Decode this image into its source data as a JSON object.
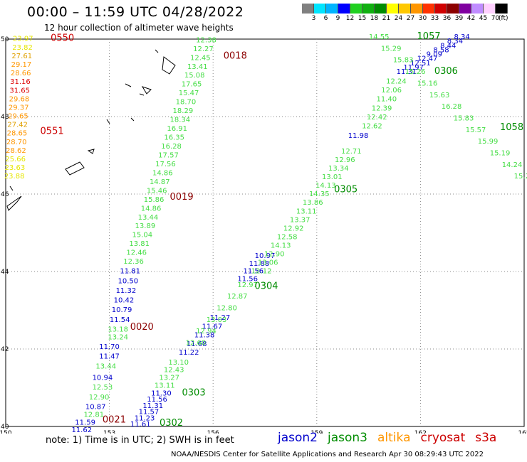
{
  "header": {
    "title": "00:00 – 11:59 UTC 04/28/2022",
    "subtitle": "12 hour collection of altimeter wave heights"
  },
  "colorbar": {
    "unit": "(ft)",
    "labels": [
      "3",
      "6",
      "9",
      "12",
      "15",
      "18",
      "21",
      "24",
      "27",
      "30",
      "33",
      "36",
      "39",
      "42",
      "45",
      "70"
    ],
    "colors": [
      "#808080",
      "#00e5ff",
      "#00b4ff",
      "#0000ff",
      "#20d020",
      "#10b010",
      "#008c00",
      "#ffff00",
      "#ffc800",
      "#ff9600",
      "#ff3200",
      "#d00000",
      "#8c0000",
      "#8000a0",
      "#c08cff",
      "#ffd0ff",
      "#000000"
    ]
  },
  "axes": {
    "x_ticks": [
      "150",
      "153",
      "156",
      "159",
      "162",
      "165"
    ],
    "y_ticks": [
      "50",
      "48",
      "46",
      "44",
      "42",
      "40"
    ]
  },
  "satellites": [
    {
      "name": "jason2",
      "color": "#0000cc"
    },
    {
      "name": "jason3",
      "color": "#008c00"
    },
    {
      "name": "altika",
      "color": "#ff9600"
    },
    {
      "name": "cryosat",
      "color": "#cc0000"
    },
    {
      "name": "s3a",
      "color": "#cc0000"
    }
  ],
  "note": "note:  1) Time is in UTC;  2) SWH is in feet",
  "footer": "NOAA/NESDIS Center for Satellite Applications and Research    Apr 30 08:29:43 UTC 2022",
  "pass_labels": [
    {
      "text": "0550",
      "color": "#cc0000",
      "lon": 151.3,
      "lat": 49.95
    },
    {
      "text": "0551",
      "color": "#cc0000",
      "lon": 151.0,
      "lat": 47.55
    },
    {
      "text": "0018",
      "color": "#8c0000",
      "lon": 156.3,
      "lat": 49.5
    },
    {
      "text": "0019",
      "color": "#8c0000",
      "lon": 154.75,
      "lat": 45.85
    },
    {
      "text": "0020",
      "color": "#8c0000",
      "lon": 153.6,
      "lat": 42.5
    },
    {
      "text": "0021",
      "color": "#8c0000",
      "lon": 152.8,
      "lat": 40.1
    },
    {
      "text": "0302",
      "color": "#008c00",
      "lon": 154.45,
      "lat": 40.02
    },
    {
      "text": "0303",
      "color": "#008c00",
      "lon": 155.1,
      "lat": 40.8
    },
    {
      "text": "0304",
      "color": "#008c00",
      "lon": 157.2,
      "lat": 43.55
    },
    {
      "text": "0305",
      "color": "#008c00",
      "lon": 159.5,
      "lat": 46.05
    },
    {
      "text": "0306",
      "color": "#008c00",
      "lon": 162.4,
      "lat": 49.1
    },
    {
      "text": "1057",
      "color": "#008c00",
      "lon": 161.9,
      "lat": 50.0
    },
    {
      "text": "1058",
      "color": "#008c00",
      "lon": 164.3,
      "lat": 47.65
    }
  ],
  "tracks": [
    {
      "sat": "altika",
      "values": [
        "23.97",
        "23.82",
        "27.61",
        "29.17",
        "28.66",
        "31.16",
        "31.65",
        "29.68",
        "29.37",
        "29.65",
        "27.42",
        "28.65",
        "28.70",
        "28.62",
        "25.66",
        "23.63",
        "23.88"
      ],
      "start": [
        150.5,
        49.95
      ],
      "end": [
        150.25,
        46.4
      ]
    },
    {
      "sat": "jason3",
      "values": [
        "12.38",
        "12.27",
        "12.45",
        "13.41",
        "15.08",
        "17.65",
        "15.47",
        "18.70",
        "18.29",
        "18.34",
        "16.91",
        "16.35",
        "16.28",
        "17.57",
        "17.56",
        "14.86",
        "14.87",
        "15.46",
        "15.86",
        "14.86",
        "13.44",
        "13.89",
        "15.04",
        "13.81",
        "12.46",
        "12.36"
      ],
      "start": [
        155.8,
        49.92
      ],
      "end": [
        153.7,
        44.2
      ]
    },
    {
      "sat": "jason2",
      "values": [
        "11.81",
        "10.50",
        "11.32",
        "10.42",
        "10.79",
        "11.54"
      ],
      "start": [
        153.6,
        43.95
      ],
      "end": [
        153.3,
        42.7
      ]
    },
    {
      "sat": "jason3",
      "values": [
        "13.18",
        "13.24"
      ],
      "start": [
        153.25,
        42.45
      ],
      "end": [
        153.25,
        42.25
      ]
    },
    {
      "sat": "jason2",
      "values": [
        "11.70",
        "11.47"
      ],
      "start": [
        153.0,
        42.0
      ],
      "end": [
        153.0,
        41.75
      ]
    },
    {
      "sat": "jason3",
      "values": [
        "13.44"
      ],
      "start": [
        152.9,
        41.5
      ],
      "end": [
        152.9,
        41.5
      ]
    },
    {
      "sat": "jason2",
      "values": [
        "10.94"
      ],
      "start": [
        152.8,
        41.2
      ],
      "end": [
        152.8,
        41.2
      ]
    },
    {
      "sat": "jason3",
      "values": [
        "12.53",
        "12.90"
      ],
      "start": [
        152.8,
        40.95
      ],
      "end": [
        152.7,
        40.7
      ]
    },
    {
      "sat": "jason2",
      "values": [
        "10.87"
      ],
      "start": [
        152.6,
        40.45
      ],
      "end": [
        152.6,
        40.45
      ]
    },
    {
      "sat": "jason3",
      "values": [
        "12.81"
      ],
      "start": [
        152.55,
        40.25
      ],
      "end": [
        152.55,
        40.25
      ]
    },
    {
      "sat": "jason2",
      "values": [
        "11.59",
        "11.62"
      ],
      "start": [
        152.3,
        40.05
      ],
      "end": [
        152.2,
        39.85
      ]
    },
    {
      "sat": "jason2",
      "values": [
        "11.61",
        "11.23",
        "11.57",
        "11.31",
        "11.56",
        "11.30"
      ],
      "start": [
        153.9,
        40.0
      ],
      "end": [
        154.5,
        40.8
      ]
    },
    {
      "sat": "jason3",
      "values": [
        "13.11",
        "13.27",
        "12.43",
        "13.10"
      ],
      "start": [
        154.6,
        41.0
      ],
      "end": [
        155.0,
        41.6
      ]
    },
    {
      "sat": "jason2",
      "values": [
        "11.22",
        "11.68",
        "11.38",
        "11.67",
        "11.27"
      ],
      "start": [
        155.3,
        41.85
      ],
      "end": [
        156.2,
        42.75
      ]
    },
    {
      "sat": "jason3",
      "values": [
        "12.60",
        "12.94",
        "13.03",
        "12.80",
        "12.87",
        "12.97"
      ],
      "start": [
        155.5,
        42.1
      ],
      "end": [
        157.0,
        43.6
      ]
    },
    {
      "sat": "jason2",
      "values": [
        "11.56",
        "11.56",
        "11.88",
        "10.97"
      ],
      "start": [
        157.0,
        43.75
      ],
      "end": [
        157.5,
        44.35
      ]
    },
    {
      "sat": "jason3",
      "values": [
        "12.12",
        "13.06",
        "12.90",
        "14.13",
        "12.58",
        "12.92",
        "13.37",
        "13.11",
        "13.86",
        "14.35",
        "14.13",
        "13.01",
        "13.34",
        "12.96",
        "12.71"
      ],
      "start": [
        157.4,
        43.95
      ],
      "end": [
        160.0,
        47.05
      ]
    },
    {
      "sat": "jason2",
      "values": [
        "11.98"
      ],
      "start": [
        160.2,
        47.45
      ],
      "end": [
        160.2,
        47.45
      ]
    },
    {
      "sat": "jason3",
      "values": [
        "12.62",
        "12.42",
        "12.39",
        "11.40",
        "12.06",
        "12.24"
      ],
      "start": [
        160.6,
        47.7
      ],
      "end": [
        161.3,
        48.85
      ]
    },
    {
      "sat": "jason2",
      "values": [
        "11.31",
        "11.97",
        "12.51",
        "12.47",
        "9.09",
        "8.58",
        "8.44",
        "8.34",
        "8.34"
      ],
      "start": [
        161.6,
        49.1
      ],
      "end": [
        163.2,
        50.0
      ]
    },
    {
      "sat": "jason3",
      "values": [
        "14.55",
        "15.29",
        "15.83",
        "15.26",
        "15.16",
        "15.63",
        "16.28",
        "15.83",
        "15.57",
        "15.99",
        "15.19",
        "14.24",
        "15.28"
      ],
      "start": [
        160.8,
        50.0
      ],
      "end": [
        165.0,
        46.4
      ]
    }
  ]
}
